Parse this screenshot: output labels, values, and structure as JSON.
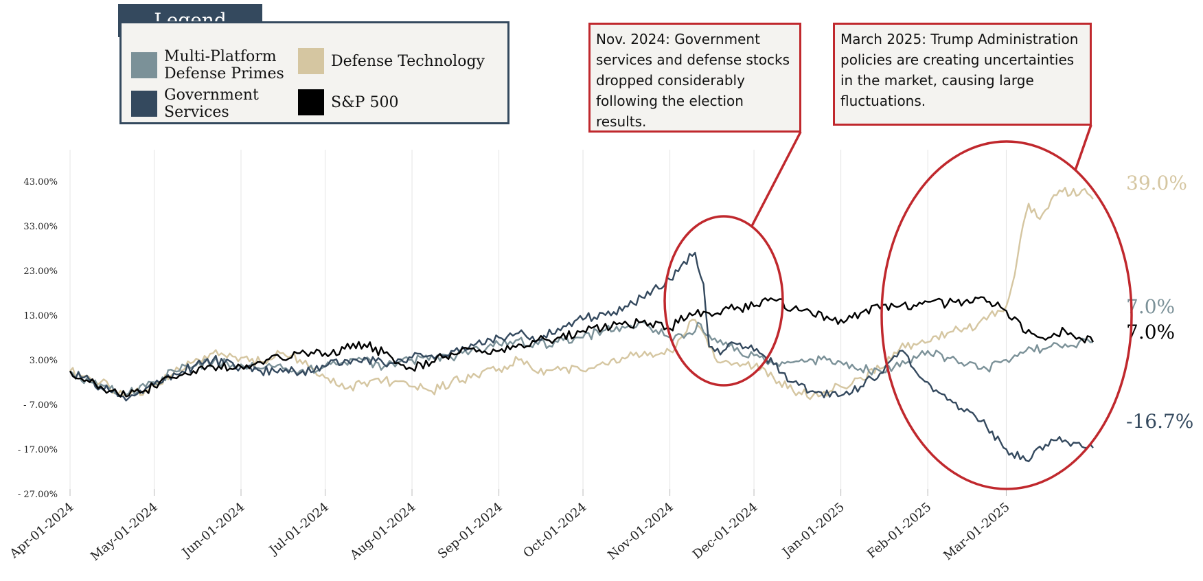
{
  "legend": {
    "title": "Legend",
    "items": [
      {
        "label_lines": [
          "Multi-Platform",
          "Defense Primes"
        ],
        "color": "#7b9198"
      },
      {
        "label_lines": [
          "Defense Technology"
        ],
        "color": "#d5c6a1"
      },
      {
        "label_lines": [
          "Government",
          "Services"
        ],
        "color": "#34495e"
      },
      {
        "label_lines": [
          "S&P 500"
        ],
        "color": "#000000"
      }
    ]
  },
  "annotations": [
    {
      "text": "Nov. 2024: Government services and defense stocks dropped considerably following the election results."
    },
    {
      "text": "March 2025: Trump Administration policies are creating uncertainties in the market, causing large fluctuations."
    }
  ],
  "highlight_color": "#c0282d",
  "chart_data": {
    "type": "line",
    "title": "",
    "xlabel": "",
    "ylabel": "",
    "y_ticks": [
      "43.00%",
      "33.00%",
      "23.00%",
      "13.00%",
      "3.00%",
      "- 7.00%",
      "- 17.00%",
      "- 27.00%"
    ],
    "x_ticks": [
      "Apr-01-2024",
      "May-01-2024",
      "Jun-01-2024",
      "Jul-01-2024",
      "Aug-01-2024",
      "Sep-01-2024",
      "Oct-01-2024",
      "Nov-01-2024",
      "Dec-01-2024",
      "Jan-01-2025",
      "Feb-01-2025",
      "Mar-01-2025"
    ],
    "ylim": [
      -27,
      43
    ],
    "xlim": [
      "2024-04-01",
      "2025-04-01"
    ],
    "grid": "vertical",
    "legend_position": "top-left",
    "series": [
      {
        "name": "Defense Technology",
        "color": "#d5c6a1",
        "end_label": "39.0%",
        "points": [
          [
            "2024-04-01",
            0.5
          ],
          [
            "2024-04-08",
            -1.0
          ],
          [
            "2024-04-15",
            -3.0
          ],
          [
            "2024-04-22",
            -5.0
          ],
          [
            "2024-05-01",
            -3.0
          ],
          [
            "2024-05-08",
            0.0
          ],
          [
            "2024-05-15",
            2.5
          ],
          [
            "2024-05-22",
            4.5
          ],
          [
            "2024-06-01",
            3.5
          ],
          [
            "2024-06-08",
            2.5
          ],
          [
            "2024-06-15",
            4.5
          ],
          [
            "2024-06-22",
            3.0
          ],
          [
            "2024-07-01",
            -1.0
          ],
          [
            "2024-07-08",
            -3.5
          ],
          [
            "2024-07-15",
            -2.0
          ],
          [
            "2024-07-22",
            -1.5
          ],
          [
            "2024-08-01",
            -3.0
          ],
          [
            "2024-08-08",
            -4.0
          ],
          [
            "2024-08-15",
            -2.0
          ],
          [
            "2024-08-22",
            -1.0
          ],
          [
            "2024-09-01",
            1.0
          ],
          [
            "2024-09-08",
            3.0
          ],
          [
            "2024-09-15",
            0.0
          ],
          [
            "2024-09-22",
            1.5
          ],
          [
            "2024-10-01",
            0.5
          ],
          [
            "2024-10-08",
            2.5
          ],
          [
            "2024-10-15",
            3.5
          ],
          [
            "2024-10-22",
            4.0
          ],
          [
            "2024-11-01",
            5.0
          ],
          [
            "2024-11-05",
            8.0
          ],
          [
            "2024-11-09",
            12.0
          ],
          [
            "2024-11-13",
            9.0
          ],
          [
            "2024-11-17",
            3.5
          ],
          [
            "2024-11-22",
            2.5
          ],
          [
            "2024-12-01",
            1.5
          ],
          [
            "2024-12-08",
            -1.0
          ],
          [
            "2024-12-15",
            -4.0
          ],
          [
            "2024-12-22",
            -5.0
          ],
          [
            "2025-01-01",
            -3.0
          ],
          [
            "2025-01-08",
            -1.0
          ],
          [
            "2025-01-15",
            1.0
          ],
          [
            "2025-01-22",
            5.5
          ],
          [
            "2025-02-01",
            7.0
          ],
          [
            "2025-02-08",
            9.0
          ],
          [
            "2025-02-15",
            10.0
          ],
          [
            "2025-02-22",
            12.0
          ],
          [
            "2025-03-01",
            15.0
          ],
          [
            "2025-03-04",
            22.0
          ],
          [
            "2025-03-06",
            30.0
          ],
          [
            "2025-03-09",
            38.0
          ],
          [
            "2025-03-12",
            35.0
          ],
          [
            "2025-03-16",
            37.0
          ],
          [
            "2025-03-20",
            41.0
          ],
          [
            "2025-03-24",
            40.0
          ],
          [
            "2025-03-28",
            41.0
          ],
          [
            "2025-04-01",
            39.0
          ]
        ]
      },
      {
        "name": "Multi-Platform Defense Primes",
        "color": "#7b9198",
        "end_label": "7.0%",
        "points": [
          [
            "2024-04-01",
            0.5
          ],
          [
            "2024-04-08",
            -2.0
          ],
          [
            "2024-04-15",
            -3.5
          ],
          [
            "2024-04-22",
            -4.5
          ],
          [
            "2024-05-01",
            -2.0
          ],
          [
            "2024-05-08",
            0.5
          ],
          [
            "2024-05-15",
            1.5
          ],
          [
            "2024-05-22",
            2.5
          ],
          [
            "2024-06-01",
            2.0
          ],
          [
            "2024-06-08",
            1.0
          ],
          [
            "2024-06-15",
            2.0
          ],
          [
            "2024-06-22",
            0.5
          ],
          [
            "2024-07-01",
            1.5
          ],
          [
            "2024-07-08",
            2.5
          ],
          [
            "2024-07-15",
            3.0
          ],
          [
            "2024-07-22",
            1.5
          ],
          [
            "2024-08-01",
            3.0
          ],
          [
            "2024-08-08",
            4.0
          ],
          [
            "2024-08-15",
            3.5
          ],
          [
            "2024-08-22",
            5.0
          ],
          [
            "2024-09-01",
            6.5
          ],
          [
            "2024-09-08",
            7.5
          ],
          [
            "2024-09-15",
            6.5
          ],
          [
            "2024-09-22",
            7.0
          ],
          [
            "2024-10-01",
            8.0
          ],
          [
            "2024-10-08",
            9.5
          ],
          [
            "2024-10-15",
            10.5
          ],
          [
            "2024-10-22",
            11.5
          ],
          [
            "2024-11-01",
            8.0
          ],
          [
            "2024-11-08",
            9.0
          ],
          [
            "2024-11-12",
            11.0
          ],
          [
            "2024-11-16",
            7.5
          ],
          [
            "2024-11-22",
            6.0
          ],
          [
            "2024-12-01",
            4.0
          ],
          [
            "2024-12-08",
            2.0
          ],
          [
            "2024-12-15",
            2.5
          ],
          [
            "2024-12-22",
            3.0
          ],
          [
            "2025-01-01",
            2.5
          ],
          [
            "2025-01-08",
            1.0
          ],
          [
            "2025-01-15",
            0.5
          ],
          [
            "2025-01-22",
            1.5
          ],
          [
            "2025-02-01",
            5.0
          ],
          [
            "2025-02-08",
            3.5
          ],
          [
            "2025-02-15",
            2.0
          ],
          [
            "2025-02-22",
            1.0
          ],
          [
            "2025-03-01",
            3.0
          ],
          [
            "2025-03-08",
            5.0
          ],
          [
            "2025-03-15",
            5.5
          ],
          [
            "2025-03-22",
            6.5
          ],
          [
            "2025-04-01",
            7.0
          ]
        ]
      },
      {
        "name": "Government Services",
        "color": "#34495e",
        "end_label": "-16.7%",
        "points": [
          [
            "2024-04-01",
            0.5
          ],
          [
            "2024-04-08",
            -1.5
          ],
          [
            "2024-04-15",
            -4.0
          ],
          [
            "2024-04-22",
            -5.5
          ],
          [
            "2024-05-01",
            -2.5
          ],
          [
            "2024-05-08",
            0.0
          ],
          [
            "2024-05-15",
            1.5
          ],
          [
            "2024-05-22",
            3.0
          ],
          [
            "2024-06-01",
            1.5
          ],
          [
            "2024-06-08",
            0.5
          ],
          [
            "2024-06-15",
            1.0
          ],
          [
            "2024-06-22",
            0.0
          ],
          [
            "2024-07-01",
            1.5
          ],
          [
            "2024-07-08",
            3.0
          ],
          [
            "2024-07-15",
            3.5
          ],
          [
            "2024-07-22",
            2.0
          ],
          [
            "2024-08-01",
            3.5
          ],
          [
            "2024-08-08",
            4.0
          ],
          [
            "2024-08-15",
            5.0
          ],
          [
            "2024-08-22",
            6.5
          ],
          [
            "2024-09-01",
            8.0
          ],
          [
            "2024-09-08",
            9.0
          ],
          [
            "2024-09-15",
            7.5
          ],
          [
            "2024-09-22",
            10.0
          ],
          [
            "2024-10-01",
            12.0
          ],
          [
            "2024-10-08",
            13.5
          ],
          [
            "2024-10-15",
            14.0
          ],
          [
            "2024-10-22",
            17.0
          ],
          [
            "2024-11-01",
            21.0
          ],
          [
            "2024-11-06",
            25.0
          ],
          [
            "2024-11-10",
            27.0
          ],
          [
            "2024-11-13",
            20.0
          ],
          [
            "2024-11-15",
            6.0
          ],
          [
            "2024-11-20",
            5.0
          ],
          [
            "2024-11-25",
            6.5
          ],
          [
            "2024-12-01",
            5.0
          ],
          [
            "2024-12-08",
            2.0
          ],
          [
            "2024-12-15",
            -2.0
          ],
          [
            "2024-12-22",
            -4.0
          ],
          [
            "2025-01-01",
            -5.0
          ],
          [
            "2025-01-08",
            -3.0
          ],
          [
            "2025-01-15",
            0.0
          ],
          [
            "2025-01-22",
            5.0
          ],
          [
            "2025-02-01",
            -2.0
          ],
          [
            "2025-02-08",
            -6.0
          ],
          [
            "2025-02-15",
            -8.0
          ],
          [
            "2025-02-22",
            -12.0
          ],
          [
            "2025-03-01",
            -17.0
          ],
          [
            "2025-03-08",
            -19.5
          ],
          [
            "2025-03-15",
            -16.0
          ],
          [
            "2025-03-22",
            -15.0
          ],
          [
            "2025-04-01",
            -16.7
          ]
        ]
      },
      {
        "name": "S&P 500",
        "color": "#000000",
        "end_label": "7.0%",
        "points": [
          [
            "2024-04-01",
            0.5
          ],
          [
            "2024-04-08",
            -2.0
          ],
          [
            "2024-04-15",
            -4.0
          ],
          [
            "2024-04-22",
            -5.0
          ],
          [
            "2024-05-01",
            -3.0
          ],
          [
            "2024-05-08",
            -1.0
          ],
          [
            "2024-05-15",
            0.5
          ],
          [
            "2024-05-22",
            1.5
          ],
          [
            "2024-06-01",
            1.5
          ],
          [
            "2024-06-08",
            2.5
          ],
          [
            "2024-06-15",
            3.5
          ],
          [
            "2024-06-22",
            4.5
          ],
          [
            "2024-07-01",
            4.5
          ],
          [
            "2024-07-08",
            5.5
          ],
          [
            "2024-07-15",
            6.5
          ],
          [
            "2024-07-22",
            4.5
          ],
          [
            "2024-08-01",
            1.0
          ],
          [
            "2024-08-08",
            2.5
          ],
          [
            "2024-08-15",
            4.5
          ],
          [
            "2024-08-22",
            5.5
          ],
          [
            "2024-09-01",
            5.0
          ],
          [
            "2024-09-08",
            6.5
          ],
          [
            "2024-09-15",
            7.5
          ],
          [
            "2024-09-22",
            8.0
          ],
          [
            "2024-10-01",
            9.5
          ],
          [
            "2024-10-08",
            10.0
          ],
          [
            "2024-10-15",
            11.0
          ],
          [
            "2024-10-22",
            11.5
          ],
          [
            "2024-11-01",
            10.0
          ],
          [
            "2024-11-08",
            13.5
          ],
          [
            "2024-11-15",
            13.5
          ],
          [
            "2024-11-22",
            14.5
          ],
          [
            "2024-12-01",
            15.0
          ],
          [
            "2024-12-08",
            16.5
          ],
          [
            "2024-12-15",
            14.5
          ],
          [
            "2024-12-22",
            13.0
          ],
          [
            "2025-01-01",
            12.0
          ],
          [
            "2025-01-08",
            13.5
          ],
          [
            "2025-01-15",
            14.5
          ],
          [
            "2025-01-22",
            15.0
          ],
          [
            "2025-02-01",
            16.0
          ],
          [
            "2025-02-08",
            15.5
          ],
          [
            "2025-02-15",
            16.5
          ],
          [
            "2025-02-22",
            16.0
          ],
          [
            "2025-03-01",
            14.0
          ],
          [
            "2025-03-08",
            9.0
          ],
          [
            "2025-03-15",
            7.5
          ],
          [
            "2025-03-22",
            9.5
          ],
          [
            "2025-04-01",
            7.0
          ]
        ]
      }
    ]
  }
}
